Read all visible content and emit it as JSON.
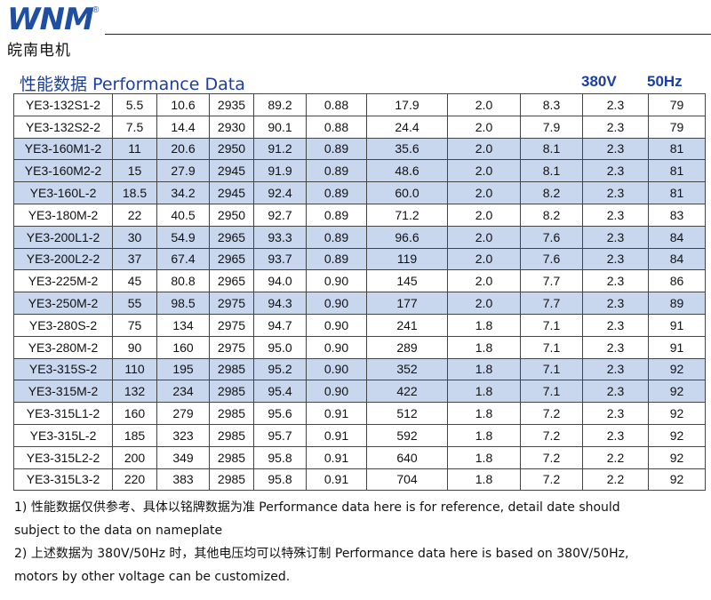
{
  "brand": {
    "logo": "WNM",
    "registered": "®",
    "name_cn": "皖南电机"
  },
  "section": {
    "title": "性能数据 Performance Data",
    "voltage": "380V",
    "frequency": "50Hz"
  },
  "rows": [
    {
      "model": "YE3-132S1-2",
      "c1": "5.5",
      "c2": "10.6",
      "c3": "2935",
      "c4": "89.2",
      "c5": "0.88",
      "c6": "17.9",
      "c7": "2.0",
      "c8": "8.3",
      "c9": "2.3",
      "c10": "79"
    },
    {
      "model": "YE3-132S2-2",
      "c1": "7.5",
      "c2": "14.4",
      "c3": "2930",
      "c4": "90.1",
      "c5": "0.88",
      "c6": "24.4",
      "c7": "2.0",
      "c8": "7.9",
      "c9": "2.3",
      "c10": "79"
    },
    {
      "model": "YE3-160M1-2",
      "c1": "11",
      "c2": "20.6",
      "c3": "2950",
      "c4": "91.2",
      "c5": "0.89",
      "c6": "35.6",
      "c7": "2.0",
      "c8": "8.1",
      "c9": "2.3",
      "c10": "81"
    },
    {
      "model": "YE3-160M2-2",
      "c1": "15",
      "c2": "27.9",
      "c3": "2945",
      "c4": "91.9",
      "c5": "0.89",
      "c6": "48.6",
      "c7": "2.0",
      "c8": "8.1",
      "c9": "2.3",
      "c10": "81"
    },
    {
      "model": "YE3-160L-2",
      "c1": "18.5",
      "c2": "34.2",
      "c3": "2945",
      "c4": "92.4",
      "c5": "0.89",
      "c6": "60.0",
      "c7": "2.0",
      "c8": "8.2",
      "c9": "2.3",
      "c10": "81"
    },
    {
      "model": "YE3-180M-2",
      "c1": "22",
      "c2": "40.5",
      "c3": "2950",
      "c4": "92.7",
      "c5": "0.89",
      "c6": "71.2",
      "c7": "2.0",
      "c8": "8.2",
      "c9": "2.3",
      "c10": "83"
    },
    {
      "model": "YE3-200L1-2",
      "c1": "30",
      "c2": "54.9",
      "c3": "2965",
      "c4": "93.3",
      "c5": "0.89",
      "c6": "96.6",
      "c7": "2.0",
      "c8": "7.6",
      "c9": "2.3",
      "c10": "84"
    },
    {
      "model": "YE3-200L2-2",
      "c1": "37",
      "c2": "67.4",
      "c3": "2965",
      "c4": "93.7",
      "c5": "0.89",
      "c6": "119",
      "c7": "2.0",
      "c8": "7.6",
      "c9": "2.3",
      "c10": "84"
    },
    {
      "model": "YE3-225M-2",
      "c1": "45",
      "c2": "80.8",
      "c3": "2965",
      "c4": "94.0",
      "c5": "0.90",
      "c6": "145",
      "c7": "2.0",
      "c8": "7.7",
      "c9": "2.3",
      "c10": "86"
    },
    {
      "model": "YE3-250M-2",
      "c1": "55",
      "c2": "98.5",
      "c3": "2975",
      "c4": "94.3",
      "c5": "0.90",
      "c6": "177",
      "c7": "2.0",
      "c8": "7.7",
      "c9": "2.3",
      "c10": "89"
    },
    {
      "model": "YE3-280S-2",
      "c1": "75",
      "c2": "134",
      "c3": "2975",
      "c4": "94.7",
      "c5": "0.90",
      "c6": "241",
      "c7": "1.8",
      "c8": "7.1",
      "c9": "2.3",
      "c10": "91"
    },
    {
      "model": "YE3-280M-2",
      "c1": "90",
      "c2": "160",
      "c3": "2975",
      "c4": "95.0",
      "c5": "0.90",
      "c6": "289",
      "c7": "1.8",
      "c8": "7.1",
      "c9": "2.3",
      "c10": "91"
    },
    {
      "model": "YE3-315S-2",
      "c1": "110",
      "c2": "195",
      "c3": "2985",
      "c4": "95.2",
      "c5": "0.90",
      "c6": "352",
      "c7": "1.8",
      "c8": "7.1",
      "c9": "2.3",
      "c10": "92"
    },
    {
      "model": "YE3-315M-2",
      "c1": "132",
      "c2": "234",
      "c3": "2985",
      "c4": "95.4",
      "c5": "0.90",
      "c6": "422",
      "c7": "1.8",
      "c8": "7.1",
      "c9": "2.3",
      "c10": "92"
    },
    {
      "model": "YE3-315L1-2",
      "c1": "160",
      "c2": "279",
      "c3": "2985",
      "c4": "95.6",
      "c5": "0.91",
      "c6": "512",
      "c7": "1.8",
      "c8": "7.2",
      "c9": "2.3",
      "c10": "92"
    },
    {
      "model": "YE3-315L-2",
      "c1": "185",
      "c2": "323",
      "c3": "2985",
      "c4": "95.7",
      "c5": "0.91",
      "c6": "592",
      "c7": "1.8",
      "c8": "7.2",
      "c9": "2.3",
      "c10": "92"
    },
    {
      "model": "YE3-315L2-2",
      "c1": "200",
      "c2": "349",
      "c3": "2985",
      "c4": "95.8",
      "c5": "0.91",
      "c6": "640",
      "c7": "1.8",
      "c8": "7.2",
      "c9": "2.2",
      "c10": "92"
    },
    {
      "model": "YE3-315L3-2",
      "c1": "220",
      "c2": "383",
      "c3": "2985",
      "c4": "95.8",
      "c5": "0.91",
      "c6": "704",
      "c7": "1.8",
      "c8": "7.2",
      "c9": "2.2",
      "c10": "92"
    }
  ],
  "notes": {
    "note1_line1": "1)  性能数据仅供参考、具体以铭牌数据为准  Performance data here is for reference, detail date should",
    "note1_line2": "subject to the data on nameplate",
    "note2_line1": "2)  上述数据为 380V/50Hz 时，其他电压均可以特殊订制  Performance data here is based on 380V/50Hz,",
    "note2_line2": "motors by other voltage can be customized."
  },
  "colors": {
    "brand_blue": "#1f4fa3",
    "title_blue": "#1b3fa0",
    "row_shade": "#c8d6ee"
  }
}
